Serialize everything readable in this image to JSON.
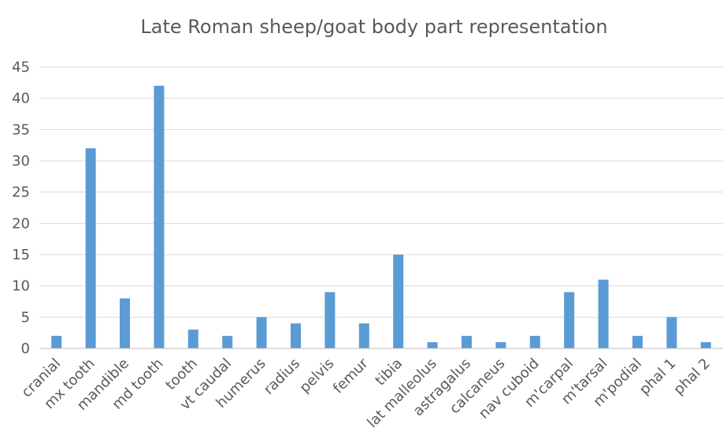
{
  "chart_data": {
    "type": "bar",
    "title": "Late Roman sheep/goat body part representation",
    "xlabel": "",
    "ylabel": "",
    "categories": [
      "cranial",
      "mx tooth",
      "mandible",
      "md tooth",
      "tooth",
      "vt caudal",
      "humerus",
      "radius",
      "pelvis",
      "femur",
      "tibia",
      "lat malleolus",
      "astragalus",
      "calcaneus",
      "nav cuboid",
      "m'carpal",
      "m'tarsal",
      "m'podial",
      "phal 1",
      "phal 2"
    ],
    "values": [
      2,
      32,
      8,
      42,
      3,
      2,
      5,
      4,
      9,
      4,
      15,
      1,
      2,
      1,
      2,
      9,
      11,
      2,
      5,
      1
    ],
    "ylim": [
      0,
      45
    ],
    "yticks": [
      0,
      5,
      10,
      15,
      20,
      25,
      30,
      35,
      40,
      45
    ],
    "grid": true,
    "legend": "none",
    "bar_color": "#5b9bd5"
  }
}
